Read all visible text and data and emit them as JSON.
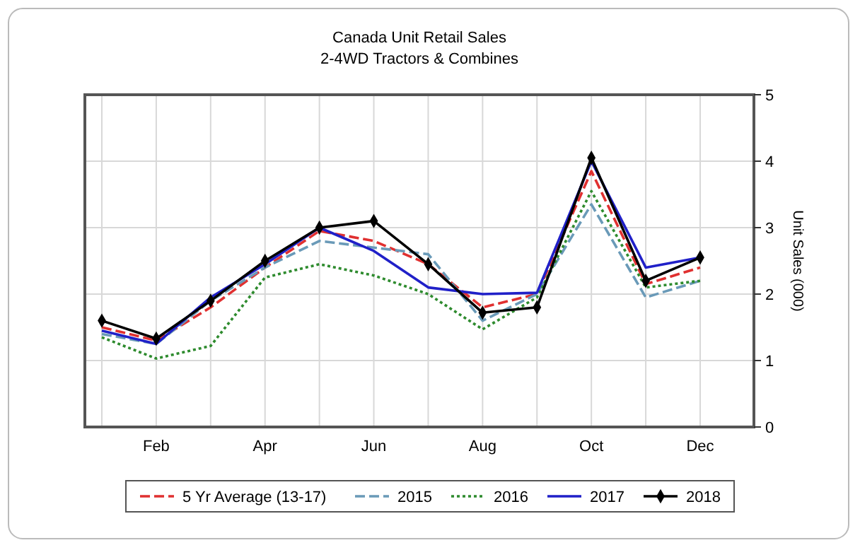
{
  "chart_data": {
    "type": "line",
    "title": "Canada Unit Retail Sales",
    "subtitle": "2-4WD Tractors & Combines",
    "ylabel": "Unit Sales (000)",
    "categories": [
      null,
      "Feb",
      null,
      "Apr",
      null,
      "Jun",
      null,
      "Aug",
      null,
      "Oct",
      null,
      "Dec"
    ],
    "series": [
      {
        "name": "5 Yr Average (13-17)",
        "color": "#e03030",
        "line_style": "dashed",
        "marker": "none",
        "values": [
          1.5,
          1.3,
          1.8,
          2.4,
          2.95,
          2.8,
          2.45,
          1.8,
          2.0,
          3.85,
          2.15,
          2.4
        ]
      },
      {
        "name": "2015",
        "color": "#6a9ab8",
        "line_style": "dashed",
        "marker": "none",
        "values": [
          1.4,
          1.25,
          1.9,
          2.4,
          2.8,
          2.7,
          2.6,
          1.6,
          2.0,
          3.35,
          1.95,
          2.2
        ]
      },
      {
        "name": "2016",
        "color": "#2e8b2e",
        "line_style": "dotted",
        "marker": "none",
        "values": [
          1.35,
          1.03,
          1.22,
          2.25,
          2.45,
          2.28,
          2.0,
          1.47,
          1.95,
          3.55,
          2.1,
          2.2
        ]
      },
      {
        "name": "2017",
        "color": "#2020c8",
        "line_style": "solid",
        "marker": "none",
        "values": [
          1.45,
          1.25,
          1.95,
          2.45,
          3.0,
          2.65,
          2.1,
          2.0,
          2.02,
          4.0,
          2.4,
          2.55
        ]
      },
      {
        "name": "2018",
        "color": "#000000",
        "line_style": "solid",
        "marker": "diamond",
        "values": [
          1.6,
          1.33,
          1.9,
          2.5,
          3.0,
          3.1,
          2.45,
          1.72,
          1.8,
          4.05,
          2.2,
          2.55
        ]
      }
    ],
    "ylim": [
      0,
      5
    ],
    "yticks": [
      0,
      1,
      2,
      3,
      4,
      5
    ],
    "grid": true,
    "legend": "bottom"
  }
}
